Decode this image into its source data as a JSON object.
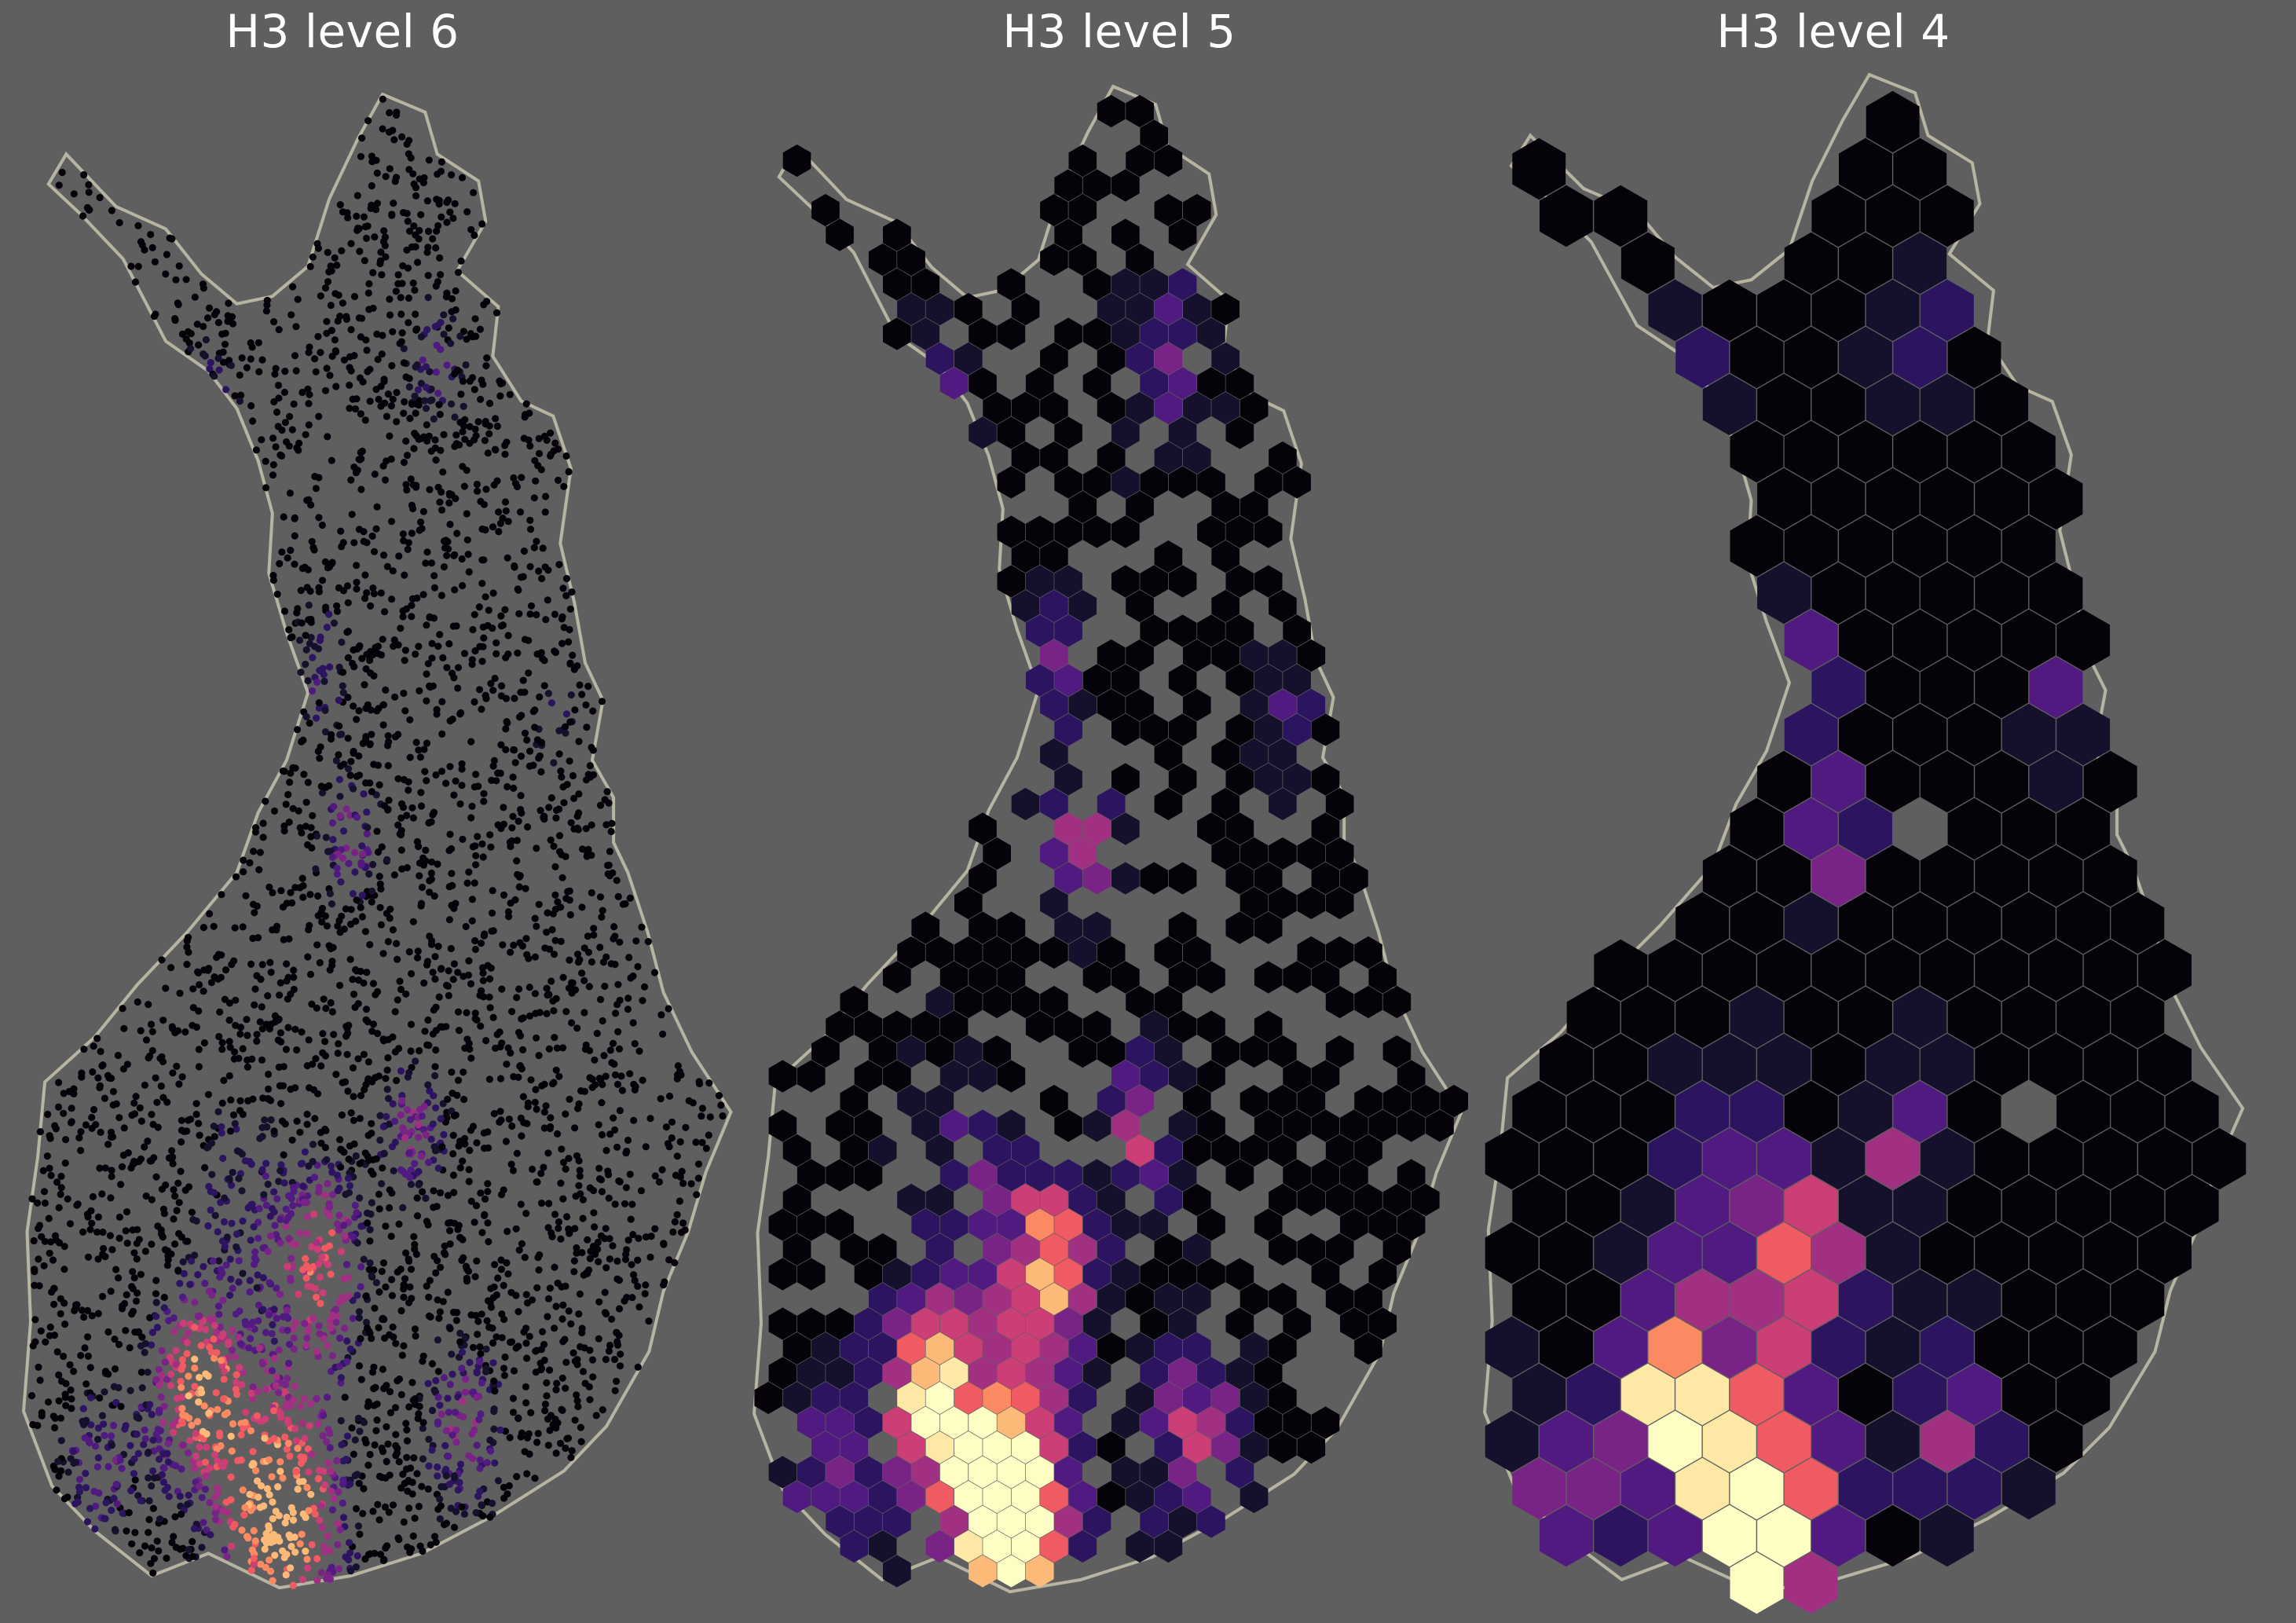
{
  "panels": [
    {
      "title": "H3 level 6"
    },
    {
      "title": "H3 level 5"
    },
    {
      "title": "H3 level 4"
    }
  ],
  "colors": {
    "background": "#5f5f5f",
    "outline": "#b8b4a2",
    "colormap": "magma",
    "colormap_stops": [
      "#050309",
      "#15102b",
      "#2d1461",
      "#511a80",
      "#7a2386",
      "#a12f82",
      "#cb3e76",
      "#ef5a63",
      "#fb8a62",
      "#fdb978",
      "#fde8a6",
      "#fdfdc4"
    ]
  }
}
